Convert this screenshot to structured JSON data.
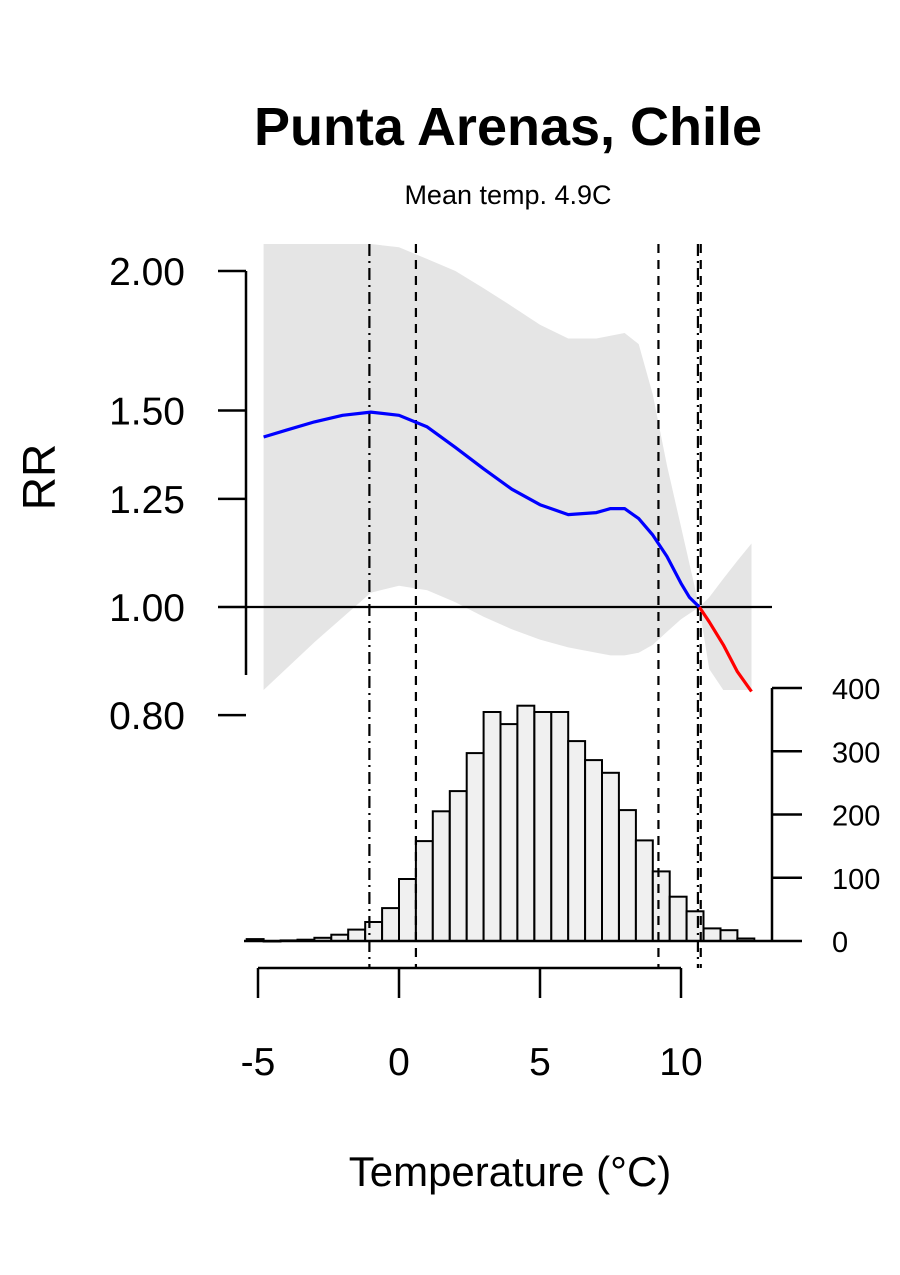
{
  "chart_data": {
    "type": "line",
    "title": "Punta Arenas, Chile",
    "subtitle": "Mean temp. 4.9C",
    "xlabel": "Temperature (°C)",
    "ylabel": "RR",
    "xlim": [
      -5.5,
      13.2
    ],
    "x_ticks": [
      "-5",
      "0",
      "5",
      "10"
    ],
    "x_tick_values": [
      -5,
      0,
      5,
      10
    ],
    "y_scale": "log",
    "ylim": [
      0.8,
      2.0
    ],
    "y_ticks": [
      "0.80",
      "1.00",
      "1.25",
      "1.50",
      "2.00"
    ],
    "y_tick_values": [
      0.8,
      1.0,
      1.25,
      1.5,
      2.0
    ],
    "reference_line": 1.0,
    "colors": {
      "cold_curve": "#0000ff",
      "heat_curve": "#ff0000",
      "ci_band": "#e5e5e5",
      "hist_fill": "#f0f0f0"
    },
    "series": [
      {
        "color": "#0000ff",
        "x": [
          -4.8,
          -4.0,
          -3.0,
          -2.0,
          -1.0,
          0.0,
          1.0,
          2.0,
          3.0,
          4.0,
          5.0,
          6.0,
          7.0,
          7.5,
          8.0,
          8.5,
          9.0,
          9.5,
          10.0,
          10.3,
          10.65
        ],
        "y": [
          1.42,
          1.44,
          1.465,
          1.485,
          1.495,
          1.485,
          1.45,
          1.39,
          1.33,
          1.275,
          1.235,
          1.21,
          1.215,
          1.225,
          1.225,
          1.2,
          1.16,
          1.11,
          1.05,
          1.02,
          1.0
        ]
      },
      {
        "color": "#ff0000",
        "x": [
          10.65,
          11.0,
          11.5,
          12.0,
          12.5
        ],
        "y": [
          1.0,
          0.97,
          0.925,
          0.875,
          0.84
        ]
      }
    ],
    "ci_band": {
      "x": [
        -4.8,
        -3.0,
        -1.0,
        0.0,
        1.0,
        2.0,
        3.0,
        4.0,
        5.0,
        6.0,
        7.0,
        7.5,
        8.0,
        8.5,
        9.0,
        9.5,
        10.0,
        10.65,
        11.0,
        11.5,
        12.0,
        12.5
      ],
      "upper": [
        2.2,
        2.2,
        2.2,
        2.1,
        2.05,
        2.0,
        1.93,
        1.86,
        1.79,
        1.74,
        1.74,
        1.75,
        1.76,
        1.72,
        1.55,
        1.34,
        1.18,
        1.0,
        1.02,
        1.06,
        1.1,
        1.14
      ],
      "lower": [
        0.78,
        0.93,
        1.03,
        1.045,
        1.035,
        1.01,
        0.98,
        0.955,
        0.935,
        0.92,
        0.91,
        0.905,
        0.905,
        0.91,
        0.925,
        0.95,
        0.975,
        1.0,
        0.88,
        0.79,
        0.73,
        0.69
      ]
    },
    "vertical_lines": [
      {
        "x": -1.05,
        "style": "dotdash"
      },
      {
        "x": 0.6,
        "style": "dashed"
      },
      {
        "x": 9.2,
        "style": "dashed"
      },
      {
        "x": 10.6,
        "style": "dotdash"
      },
      {
        "x": 10.7,
        "style": "dashed"
      }
    ],
    "histogram": {
      "bin_width": 0.6,
      "bin_starts": [
        -5.4,
        -4.8,
        -4.2,
        -3.6,
        -3.0,
        -2.4,
        -1.8,
        -1.2,
        -0.6,
        0.0,
        0.6,
        1.2,
        1.8,
        2.4,
        3.0,
        3.6,
        4.2,
        4.8,
        5.4,
        6.0,
        6.6,
        7.2,
        7.8,
        8.4,
        9.0,
        9.6,
        10.2,
        10.8,
        11.4,
        12.0
      ],
      "counts": [
        3,
        0,
        1,
        2,
        5,
        10,
        18,
        30,
        52,
        98,
        158,
        205,
        237,
        297,
        362,
        343,
        372,
        362,
        362,
        316,
        286,
        266,
        207,
        159,
        110,
        70,
        47,
        20,
        17,
        4
      ],
      "y_ticks": [
        "0",
        "100",
        "200",
        "300",
        "400"
      ],
      "y_tick_values": [
        0,
        100,
        200,
        300,
        400
      ]
    }
  }
}
